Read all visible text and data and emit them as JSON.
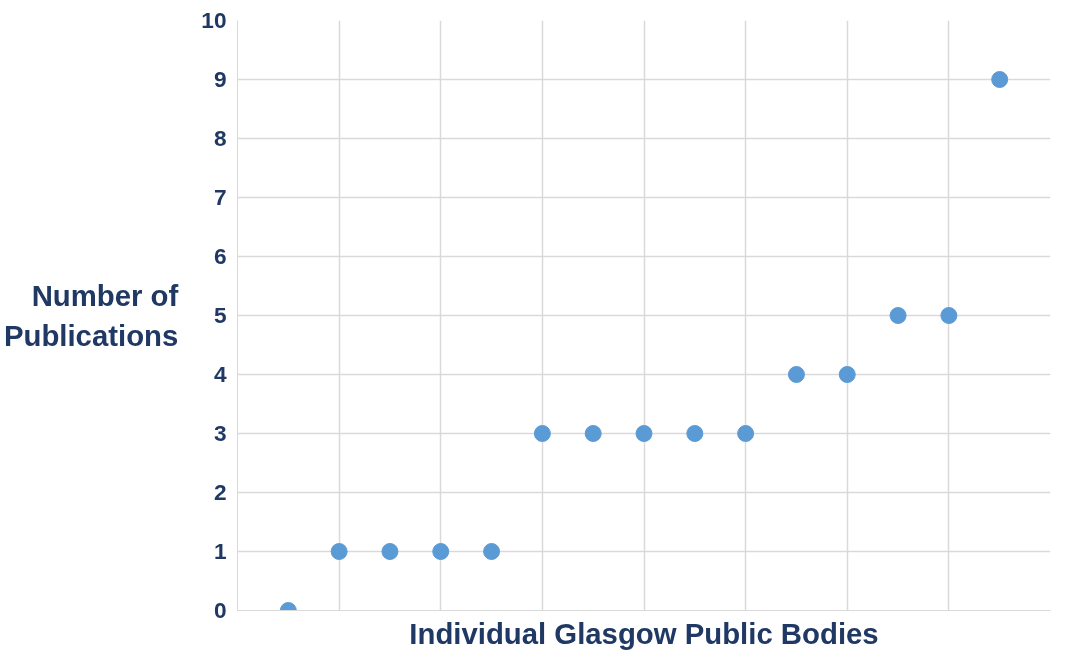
{
  "chart_data": {
    "type": "scatter",
    "xlabel": "Individual Glasgow Public Bodies",
    "ylabel": "Number of\nPublications",
    "categories": [
      null,
      null,
      null,
      null,
      null,
      null,
      null,
      null,
      null,
      null,
      null,
      null,
      null,
      null,
      null
    ],
    "series": [
      {
        "color": "#5b9bd5",
        "values": [
          0,
          1,
          1,
          1,
          1,
          3,
          3,
          3,
          3,
          3,
          4,
          4,
          5,
          5,
          9
        ]
      }
    ],
    "ylim": [
      0,
      10
    ],
    "yticks": [
      0,
      1,
      2,
      3,
      4,
      5,
      6,
      7,
      8,
      9,
      10
    ],
    "grid": true,
    "marker": "circle",
    "tick_labels": "y"
  }
}
